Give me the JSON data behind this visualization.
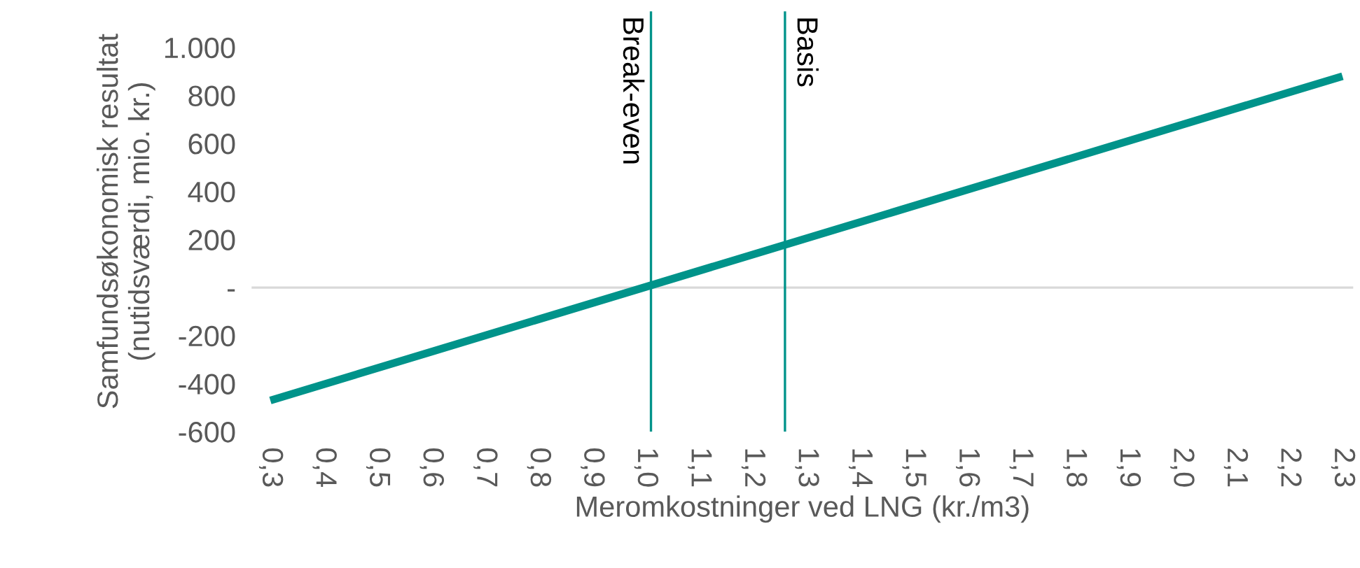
{
  "chart_data": {
    "type": "line",
    "xlabel": "Meromkostninger ved LNG (kr./m3)",
    "ylabel": "Samfundsøkonomisk resultat\n(nutidsværdi, mio. kr.)",
    "series": [
      {
        "color": "#00938a",
        "x": [
          0.3,
          2.3
        ],
        "values": [
          -470,
          880
        ]
      }
    ],
    "xlim": [
      0.265,
      2.32
    ],
    "ylim": [
      -600,
      1150
    ],
    "xticks": [
      {
        "value": 0.3,
        "label": "0,3"
      },
      {
        "value": 0.4,
        "label": "0,4"
      },
      {
        "value": 0.5,
        "label": "0,5"
      },
      {
        "value": 0.6,
        "label": "0,6"
      },
      {
        "value": 0.7,
        "label": "0,7"
      },
      {
        "value": 0.8,
        "label": "0,8"
      },
      {
        "value": 0.9,
        "label": "0,9"
      },
      {
        "value": 1.0,
        "label": "1,0"
      },
      {
        "value": 1.1,
        "label": "1,1"
      },
      {
        "value": 1.2,
        "label": "1,2"
      },
      {
        "value": 1.3,
        "label": "1,3"
      },
      {
        "value": 1.4,
        "label": "1,4"
      },
      {
        "value": 1.5,
        "label": "1,5"
      },
      {
        "value": 1.6,
        "label": "1,6"
      },
      {
        "value": 1.7,
        "label": "1,7"
      },
      {
        "value": 1.8,
        "label": "1,8"
      },
      {
        "value": 1.9,
        "label": "1,9"
      },
      {
        "value": 2.0,
        "label": "2,0"
      },
      {
        "value": 2.1,
        "label": "2,1"
      },
      {
        "value": 2.2,
        "label": "2,2"
      },
      {
        "value": 2.3,
        "label": "2,3"
      }
    ],
    "yticks": [
      {
        "value": -600,
        "label": "-600"
      },
      {
        "value": -400,
        "label": "-400"
      },
      {
        "value": -200,
        "label": "-200"
      },
      {
        "value": 0,
        "label": "-"
      },
      200,
      400,
      600,
      800,
      {
        "value": 1000,
        "label": "1.000"
      }
    ],
    "ref_lines": [
      {
        "axis": "y",
        "value": 0,
        "color": "#d9d9d9"
      },
      {
        "axis": "x",
        "value": 1.01,
        "label": "Break-even",
        "color": "#00938a"
      },
      {
        "axis": "x",
        "value": 1.26,
        "label": "Basis",
        "color": "#00938a"
      }
    ],
    "grid": false,
    "legend": false,
    "marker": "none",
    "line_style": "solid"
  }
}
